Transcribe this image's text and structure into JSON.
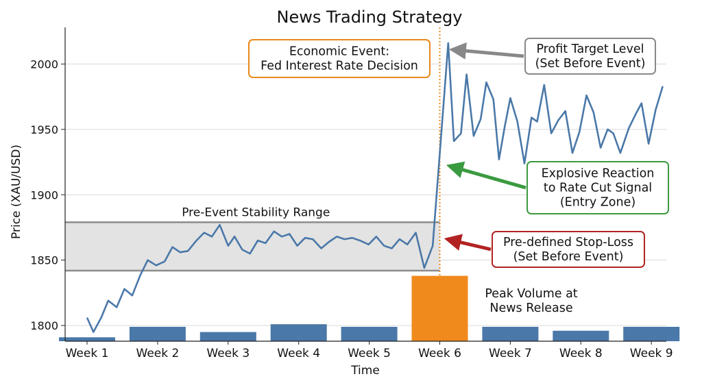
{
  "chart_data": {
    "type": "line",
    "title": "News Trading Strategy",
    "xlabel": "Time",
    "ylabel": "Price (XAU/USD)",
    "ylim": [
      1788,
      2028
    ],
    "yticks": [
      1800,
      1850,
      1900,
      1950,
      2000
    ],
    "grid": "horizontal",
    "categories": [
      "Week 1",
      "Week 2",
      "Week 3",
      "Week 4",
      "Week 5",
      "Week 6",
      "Week 7",
      "Week 8",
      "Week 9"
    ],
    "volume_bars": {
      "values": [
        1791,
        1799,
        1795,
        1801,
        1799,
        1838,
        1799,
        1796,
        1799
      ],
      "color": "#4a78a8",
      "highlight_index": 5,
      "highlight_color": "#f08a1c"
    },
    "price_series": {
      "color": "#4a78a8",
      "points": [
        [
          0.0,
          1806
        ],
        [
          0.09,
          1795
        ],
        [
          0.2,
          1806
        ],
        [
          0.3,
          1819
        ],
        [
          0.42,
          1814
        ],
        [
          0.53,
          1828
        ],
        [
          0.64,
          1823
        ],
        [
          0.75,
          1838
        ],
        [
          0.86,
          1850
        ],
        [
          0.98,
          1846
        ],
        [
          1.1,
          1849
        ],
        [
          1.21,
          1860
        ],
        [
          1.32,
          1856
        ],
        [
          1.43,
          1857
        ],
        [
          1.55,
          1865
        ],
        [
          1.66,
          1871
        ],
        [
          1.77,
          1868
        ],
        [
          1.88,
          1877
        ],
        [
          2.0,
          1861
        ],
        [
          2.09,
          1868
        ],
        [
          2.2,
          1858
        ],
        [
          2.31,
          1855
        ],
        [
          2.42,
          1865
        ],
        [
          2.53,
          1863
        ],
        [
          2.65,
          1872
        ],
        [
          2.76,
          1868
        ],
        [
          2.87,
          1870
        ],
        [
          2.98,
          1861
        ],
        [
          3.09,
          1867
        ],
        [
          3.2,
          1866
        ],
        [
          3.32,
          1859
        ],
        [
          3.43,
          1864
        ],
        [
          3.54,
          1868
        ],
        [
          3.65,
          1866
        ],
        [
          3.76,
          1867
        ],
        [
          3.87,
          1865
        ],
        [
          3.99,
          1862
        ],
        [
          4.1,
          1868
        ],
        [
          4.21,
          1861
        ],
        [
          4.32,
          1859
        ],
        [
          4.43,
          1866
        ],
        [
          4.54,
          1862
        ],
        [
          4.66,
          1871
        ],
        [
          4.78,
          1844
        ],
        [
          4.9,
          1861
        ],
        [
          5.12,
          2016
        ],
        [
          5.2,
          1941
        ],
        [
          5.3,
          1947
        ],
        [
          5.38,
          1992
        ],
        [
          5.48,
          1945
        ],
        [
          5.58,
          1958
        ],
        [
          5.66,
          1986
        ],
        [
          5.76,
          1973
        ],
        [
          5.84,
          1927
        ],
        [
          5.92,
          1952
        ],
        [
          6.0,
          1974
        ],
        [
          6.1,
          1956
        ],
        [
          6.2,
          1924
        ],
        [
          6.3,
          1959
        ],
        [
          6.38,
          1956
        ],
        [
          6.48,
          1984
        ],
        [
          6.58,
          1947
        ],
        [
          6.68,
          1957
        ],
        [
          6.78,
          1964
        ],
        [
          6.88,
          1932
        ],
        [
          6.98,
          1948
        ],
        [
          7.08,
          1976
        ],
        [
          7.18,
          1963
        ],
        [
          7.28,
          1936
        ],
        [
          7.38,
          1950
        ],
        [
          7.46,
          1947
        ],
        [
          7.56,
          1932
        ],
        [
          7.68,
          1951
        ],
        [
          7.78,
          1962
        ],
        [
          7.86,
          1970
        ],
        [
          7.96,
          1939
        ],
        [
          8.06,
          1965
        ],
        [
          8.16,
          1983
        ]
      ]
    },
    "event_line": {
      "x": 5.0,
      "color": "#e8891c"
    },
    "stability_range": {
      "y_low": 1842,
      "y_high": 1879,
      "label": "Pre-Event Stability Range"
    },
    "annotations": [
      {
        "id": "event",
        "lines": [
          "Economic Event:",
          "Fed Interest Rate Decision"
        ],
        "border": "#e8891c"
      },
      {
        "id": "target",
        "lines": [
          "Profit Target Level",
          "(Set Before Event)"
        ],
        "border": "#888888",
        "arrow": "#888888",
        "target_x": 5.12,
        "target_y": 2011
      },
      {
        "id": "reaction",
        "lines": [
          "Explosive Reaction",
          "to Rate Cut Signal",
          "(Entry Zone)"
        ],
        "border": "#3a9a40",
        "arrow": "#3a9a40",
        "target_x": 5.08,
        "target_y": 1922
      },
      {
        "id": "stoploss",
        "lines": [
          "Pre-defined Stop-Loss",
          "(Set Before Event)"
        ],
        "border": "#b22222",
        "arrow": "#b22222",
        "target_x": 5.05,
        "target_y": 1866
      },
      {
        "id": "volume",
        "lines": [
          "Peak Volume at",
          "News Release"
        ]
      }
    ]
  }
}
